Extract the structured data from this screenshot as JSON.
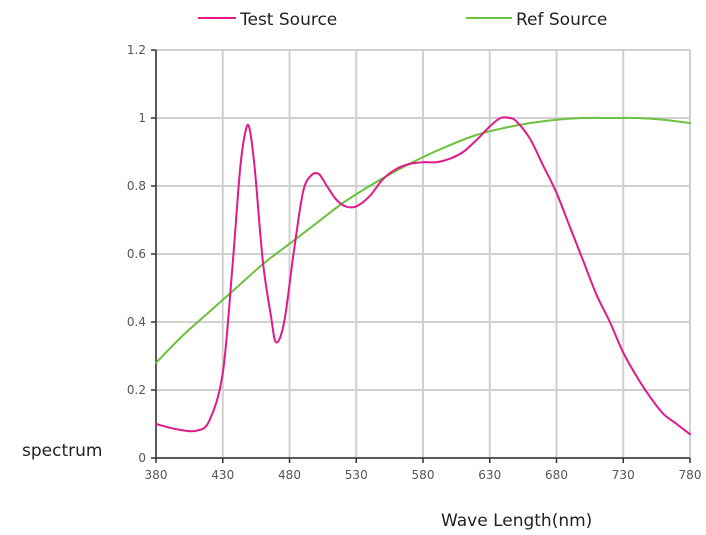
{
  "chart_data": {
    "type": "line",
    "xlabel": "Wave Length(nm)",
    "ylabel": "spectrum",
    "xlim": [
      380,
      780
    ],
    "ylim": [
      0,
      1.2
    ],
    "x_ticks": [
      380,
      430,
      480,
      530,
      580,
      630,
      680,
      730,
      780
    ],
    "y_ticks": [
      0,
      0.2,
      0.4,
      0.6,
      0.8,
      1,
      1.2
    ],
    "y_tick_labels": [
      "0",
      "0.2",
      "0.4",
      "0.6",
      "0.8",
      "1",
      "1.2"
    ],
    "grid": true,
    "legend_position": "top",
    "series": [
      {
        "name": "Test Source",
        "color": "#e0198c",
        "x": [
          380,
          395,
          410,
          420,
          430,
          437,
          443,
          447,
          450,
          454,
          460,
          466,
          470,
          476,
          483,
          490,
          496,
          502,
          508,
          515,
          522,
          530,
          540,
          550,
          560,
          570,
          580,
          590,
          600,
          610,
          620,
          630,
          638,
          645,
          650,
          660,
          670,
          680,
          690,
          700,
          710,
          720,
          730,
          740,
          750,
          760,
          770,
          780
        ],
        "y": [
          0.1,
          0.085,
          0.08,
          0.11,
          0.25,
          0.55,
          0.85,
          0.96,
          0.97,
          0.85,
          0.58,
          0.42,
          0.34,
          0.4,
          0.6,
          0.78,
          0.83,
          0.835,
          0.8,
          0.76,
          0.74,
          0.74,
          0.77,
          0.82,
          0.85,
          0.865,
          0.87,
          0.87,
          0.88,
          0.9,
          0.935,
          0.975,
          1.0,
          1.0,
          0.99,
          0.94,
          0.86,
          0.78,
          0.68,
          0.58,
          0.48,
          0.4,
          0.31,
          0.24,
          0.18,
          0.13,
          0.1,
          0.07
        ]
      },
      {
        "name": "Ref Source",
        "color": "#6cc13e",
        "x": [
          380,
          400,
          420,
          440,
          460,
          480,
          500,
          520,
          540,
          560,
          580,
          600,
          620,
          640,
          660,
          680,
          700,
          720,
          740,
          760,
          780
        ],
        "y": [
          0.28,
          0.36,
          0.43,
          0.5,
          0.57,
          0.63,
          0.69,
          0.75,
          0.8,
          0.845,
          0.885,
          0.92,
          0.95,
          0.97,
          0.985,
          0.995,
          1.0,
          1.0,
          1.0,
          0.995,
          0.985
        ]
      }
    ]
  }
}
